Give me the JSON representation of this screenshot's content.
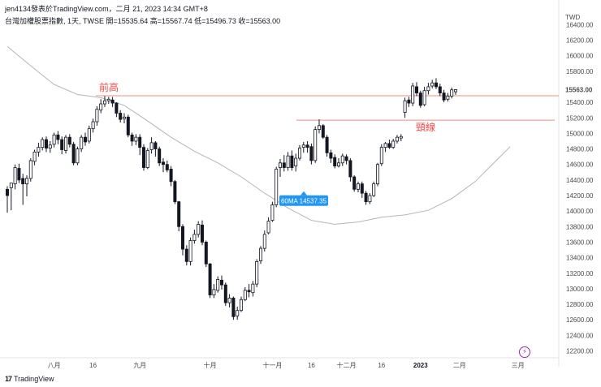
{
  "header": {
    "top": "jen4134發表於TradingView.com，二月 21, 2023 14:34 GMT+8",
    "ohlc": "台灣加權股票指數, 1天, TWSE  開=15535.64  高=15567.74  低=15496.73  收=15563.00"
  },
  "footer": {
    "brand": "TradingView",
    "brand_mark": "17"
  },
  "flash_icon": "lightning-icon",
  "colors": {
    "candle": "#131722",
    "ma_line": "#b2b5be",
    "resistance_line": "#f28b82",
    "annotation": "#f04848",
    "callout_bg": "#2196f3"
  },
  "chart_data": {
    "type": "candlestick",
    "currency_label": "TWD",
    "y_ticks": [
      12200,
      12400,
      12600,
      12800,
      13000,
      13200,
      13400,
      13600,
      13800,
      14000,
      14200,
      14400,
      14600,
      14800,
      15000,
      15200,
      15400,
      15600,
      15800,
      16000,
      16200,
      16400
    ],
    "x_ticks": [
      {
        "label": "八月",
        "i": 12
      },
      {
        "label": "16",
        "i": 22
      },
      {
        "label": "九月",
        "i": 34
      },
      {
        "label": "十月",
        "i": 52
      },
      {
        "label": "十一月",
        "i": 68
      },
      {
        "label": "16",
        "i": 78
      },
      {
        "label": "十二月",
        "i": 87
      },
      {
        "label": "16",
        "i": 96
      },
      {
        "label": "2023",
        "i": 106,
        "bold": true
      },
      {
        "label": "二月",
        "i": 116
      },
      {
        "label": "三月",
        "i": 131
      }
    ],
    "last_price": 15563.0,
    "last_price_label": "15563.00",
    "resistance_levels": [
      {
        "name": "前高",
        "price": 15485
      },
      {
        "name": "頸線",
        "price": 15170
      }
    ],
    "callout": {
      "label": "60MA 14537.35",
      "i": 75,
      "price": 14140
    },
    "ma_60": [
      [
        0,
        16120
      ],
      [
        6,
        15870
      ],
      [
        12,
        15630
      ],
      [
        18,
        15500
      ],
      [
        24,
        15460
      ],
      [
        30,
        15360
      ],
      [
        36,
        15160
      ],
      [
        42,
        14950
      ],
      [
        48,
        14770
      ],
      [
        54,
        14620
      ],
      [
        60,
        14440
      ],
      [
        66,
        14230
      ],
      [
        72,
        14040
      ],
      [
        78,
        13880
      ],
      [
        84,
        13830
      ],
      [
        90,
        13860
      ],
      [
        96,
        13920
      ],
      [
        102,
        13950
      ],
      [
        108,
        14010
      ],
      [
        114,
        14160
      ],
      [
        120,
        14380
      ],
      [
        126,
        14680
      ],
      [
        129,
        14830
      ]
    ],
    "candles": [
      [
        14280,
        14200,
        13980,
        14320
      ],
      [
        14300,
        14360,
        14010,
        14350
      ],
      [
        14350,
        14560,
        14280,
        14600
      ],
      [
        14550,
        14400,
        14360,
        14610
      ],
      [
        14420,
        14350,
        14080,
        14480
      ],
      [
        14350,
        14420,
        14190,
        14460
      ],
      [
        14420,
        14650,
        14380,
        14680
      ],
      [
        14640,
        14760,
        14590,
        14790
      ],
      [
        14760,
        14820,
        14700,
        14880
      ],
      [
        14820,
        14920,
        14780,
        14950
      ],
      [
        14920,
        14810,
        14760,
        14960
      ],
      [
        14810,
        14850,
        14750,
        14900
      ],
      [
        14860,
        14980,
        14820,
        15010
      ],
      [
        14980,
        14920,
        14860,
        15030
      ],
      [
        14920,
        14790,
        14730,
        14960
      ],
      [
        14780,
        14950,
        14740,
        14980
      ],
      [
        14950,
        14860,
        14820,
        14990
      ],
      [
        14860,
        14620,
        14590,
        14890
      ],
      [
        14620,
        14800,
        14590,
        14830
      ],
      [
        14800,
        14950,
        14760,
        14980
      ],
      [
        14950,
        14890,
        14840,
        15010
      ],
      [
        14900,
        15060,
        14870,
        15100
      ],
      [
        15060,
        15150,
        15010,
        15190
      ],
      [
        15150,
        15310,
        15100,
        15350
      ],
      [
        15300,
        15380,
        15260,
        15440
      ],
      [
        15380,
        15420,
        15340,
        15480
      ],
      [
        15420,
        15440,
        15380,
        15470
      ],
      [
        15430,
        15390,
        15340,
        15470
      ],
      [
        15390,
        15260,
        15210,
        15400
      ],
      [
        15260,
        15180,
        15140,
        15300
      ],
      [
        15190,
        15210,
        15130,
        15260
      ],
      [
        15210,
        14980,
        14950,
        15240
      ],
      [
        14980,
        14900,
        14840,
        15010
      ],
      [
        14900,
        14950,
        14850,
        14990
      ],
      [
        14950,
        14820,
        14720,
        14990
      ],
      [
        14820,
        14560,
        14520,
        14860
      ],
      [
        14560,
        14780,
        14540,
        14810
      ],
      [
        14790,
        14880,
        14740,
        14950
      ],
      [
        14880,
        14800,
        14700,
        14900
      ],
      [
        14800,
        14620,
        14580,
        14830
      ],
      [
        14630,
        14600,
        14500,
        14680
      ],
      [
        14600,
        14530,
        14500,
        14650
      ],
      [
        14540,
        14380,
        14320,
        14580
      ],
      [
        14380,
        14120,
        14090,
        14400
      ],
      [
        14120,
        13800,
        13740,
        14130
      ],
      [
        13800,
        13510,
        13430,
        13830
      ],
      [
        13510,
        13350,
        13300,
        13560
      ],
      [
        13350,
        13620,
        13300,
        13660
      ],
      [
        13620,
        13700,
        13580,
        13760
      ],
      [
        13700,
        13830,
        13660,
        13870
      ],
      [
        13820,
        13600,
        13560,
        13880
      ],
      [
        13600,
        13320,
        13280,
        13620
      ],
      [
        13320,
        12920,
        12880,
        13330
      ],
      [
        12920,
        12990,
        12880,
        13060
      ],
      [
        12980,
        13120,
        12950,
        13160
      ],
      [
        13110,
        13050,
        12990,
        13170
      ],
      [
        13050,
        12820,
        12780,
        13080
      ],
      [
        12820,
        12880,
        12760,
        12930
      ],
      [
        12880,
        12640,
        12600,
        12900
      ],
      [
        12650,
        12720,
        12600,
        12770
      ],
      [
        12720,
        12860,
        12700,
        12900
      ],
      [
        12860,
        12980,
        12840,
        13020
      ],
      [
        12980,
        12960,
        12890,
        13060
      ],
      [
        12950,
        13060,
        12900,
        13100
      ],
      [
        13060,
        13350,
        13020,
        13380
      ],
      [
        13360,
        13520,
        13320,
        13550
      ],
      [
        13520,
        13700,
        13480,
        13750
      ],
      [
        13720,
        13870,
        13700,
        13920
      ],
      [
        13880,
        14080,
        13860,
        14120
      ],
      [
        14080,
        14540,
        14050,
        14570
      ],
      [
        14560,
        14620,
        14440,
        14670
      ],
      [
        14620,
        14560,
        14510,
        14720
      ],
      [
        14560,
        14710,
        14520,
        14760
      ],
      [
        14710,
        14560,
        14520,
        14780
      ],
      [
        14580,
        14680,
        14510,
        14740
      ],
      [
        14680,
        14810,
        14650,
        14850
      ],
      [
        14820,
        14850,
        14750,
        14890
      ],
      [
        14850,
        14820,
        14750,
        14900
      ],
      [
        14830,
        14650,
        14600,
        14870
      ],
      [
        14650,
        15050,
        14620,
        15090
      ],
      [
        15050,
        15100,
        15000,
        15180
      ],
      [
        15100,
        14950,
        14930,
        15120
      ],
      [
        14950,
        14750,
        14700,
        14980
      ],
      [
        14750,
        14680,
        14620,
        14790
      ],
      [
        14690,
        14580,
        14550,
        14730
      ],
      [
        14580,
        14620,
        14560,
        14680
      ],
      [
        14620,
        14710,
        14580,
        14740
      ],
      [
        14700,
        14650,
        14600,
        14730
      ],
      [
        14650,
        14440,
        14380,
        14680
      ],
      [
        14440,
        14280,
        14250,
        14460
      ],
      [
        14280,
        14350,
        14240,
        14380
      ],
      [
        14350,
        14230,
        14170,
        14380
      ],
      [
        14230,
        14120,
        14080,
        14260
      ],
      [
        14120,
        14200,
        14090,
        14230
      ],
      [
        14200,
        14350,
        14180,
        14380
      ],
      [
        14350,
        14600,
        14320,
        14620
      ],
      [
        14610,
        14820,
        14580,
        14860
      ],
      [
        14820,
        14870,
        14760,
        14890
      ],
      [
        14870,
        14820,
        14800,
        14920
      ],
      [
        14820,
        14900,
        14800,
        14930
      ],
      [
        14900,
        14950,
        14870,
        14980
      ],
      [
        14940,
        14960,
        14900,
        14990
      ],
      [
        15270,
        15420,
        15200,
        15460
      ],
      [
        15430,
        15390,
        15340,
        15470
      ],
      [
        15390,
        15610,
        15350,
        15650
      ],
      [
        15600,
        15520,
        15480,
        15660
      ],
      [
        15520,
        15360,
        15330,
        15550
      ],
      [
        15370,
        15550,
        15350,
        15600
      ],
      [
        15550,
        15600,
        15500,
        15650
      ],
      [
        15610,
        15650,
        15580,
        15690
      ],
      [
        15650,
        15600,
        15570,
        15710
      ],
      [
        15600,
        15520,
        15480,
        15640
      ],
      [
        15520,
        15430,
        15400,
        15560
      ],
      [
        15440,
        15480,
        15410,
        15520
      ],
      [
        15480,
        15560,
        15450,
        15590
      ],
      [
        15535.64,
        15563.0,
        15496.73,
        15567.74
      ]
    ]
  }
}
